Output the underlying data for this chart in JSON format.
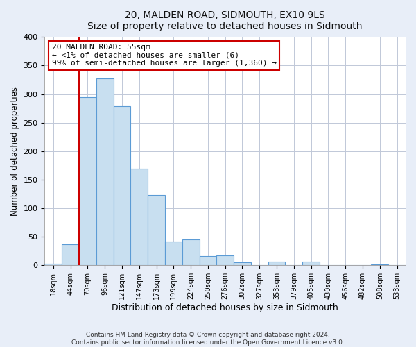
{
  "title": "20, MALDEN ROAD, SIDMOUTH, EX10 9LS",
  "subtitle": "Size of property relative to detached houses in Sidmouth",
  "xlabel": "Distribution of detached houses by size in Sidmouth",
  "ylabel": "Number of detached properties",
  "bar_labels": [
    "18sqm",
    "44sqm",
    "70sqm",
    "96sqm",
    "121sqm",
    "147sqm",
    "173sqm",
    "199sqm",
    "224sqm",
    "250sqm",
    "276sqm",
    "302sqm",
    "327sqm",
    "353sqm",
    "379sqm",
    "405sqm",
    "430sqm",
    "456sqm",
    "482sqm",
    "508sqm",
    "533sqm"
  ],
  "bar_heights": [
    3,
    37,
    295,
    328,
    279,
    169,
    123,
    42,
    46,
    16,
    17,
    5,
    0,
    6,
    0,
    7,
    0,
    0,
    0,
    2,
    0
  ],
  "bar_color": "#c8dff0",
  "bar_edge_color": "#5b9bd5",
  "property_line_color": "#cc0000",
  "annotation_title": "20 MALDEN ROAD: 55sqm",
  "annotation_line1": "← <1% of detached houses are smaller (6)",
  "annotation_line2": "99% of semi-detached houses are larger (1,360) →",
  "annotation_box_color": "#ffffff",
  "annotation_box_edge_color": "#cc0000",
  "ylim": [
    0,
    400
  ],
  "yticks": [
    0,
    50,
    100,
    150,
    200,
    250,
    300,
    350,
    400
  ],
  "footer1": "Contains HM Land Registry data © Crown copyright and database right 2024.",
  "footer2": "Contains public sector information licensed under the Open Government Licence v3.0.",
  "bg_color": "#e8eef8",
  "plot_bg_color": "#ffffff",
  "grid_color": "#c0c8d8"
}
